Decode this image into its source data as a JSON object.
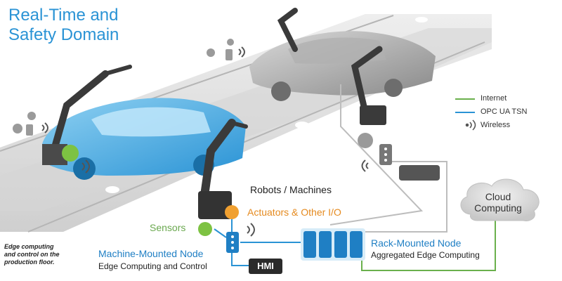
{
  "title": {
    "line1": "Real-Time and",
    "line2": "Safety Domain"
  },
  "legend": {
    "internet": {
      "label": "Internet",
      "color": "#6ab04c"
    },
    "opc": {
      "label": "OPC UA TSN",
      "color": "#2a93d5"
    },
    "wireless": {
      "label": "Wireless"
    }
  },
  "labels": {
    "robots": "Robots / Machines",
    "actuators": "Actuators & Other I/O",
    "sensors": "Sensors",
    "machine_node": "Machine-Mounted Node",
    "machine_node_sub": "Edge Computing and Control",
    "rack_node": "Rack-Mounted Node",
    "rack_node_sub": "Aggregated Edge Computing",
    "hmi": "HMI",
    "cloud_line1": "Cloud",
    "cloud_line2": "Computing"
  },
  "caption": {
    "line1": "Edge computing",
    "line2": "and control on the",
    "line3": "production floor."
  },
  "colors": {
    "accent_blue": "#2a93d5",
    "orange": "#f0a030",
    "green": "#7dc242",
    "dark": "#2b2b2b",
    "grey": "#7a7a7a"
  }
}
